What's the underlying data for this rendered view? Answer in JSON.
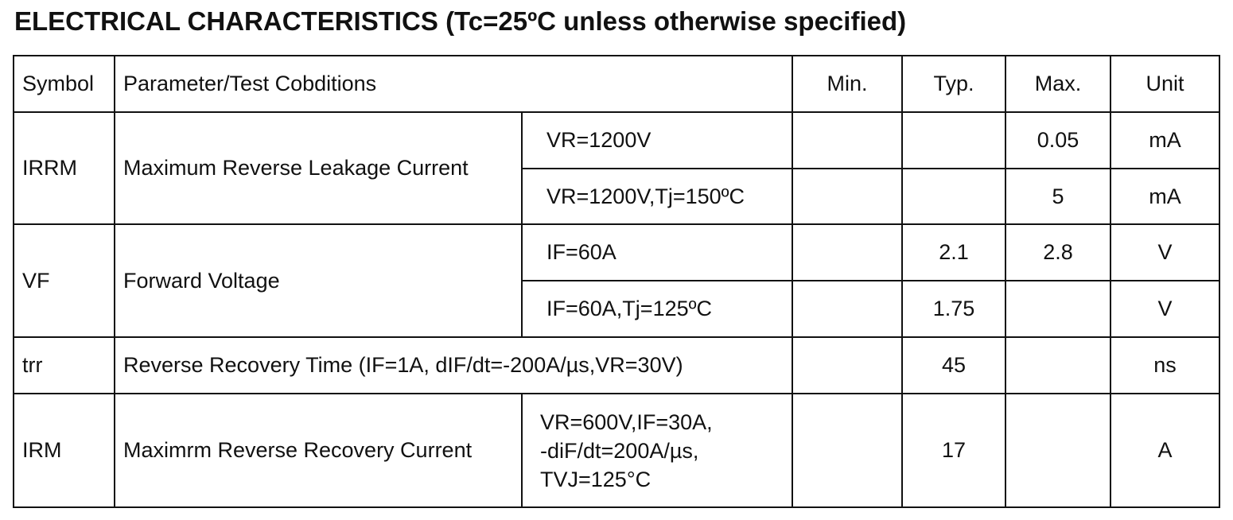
{
  "title": "ELECTRICAL CHARACTERISTICS (Tc=25ºC unless otherwise specified)",
  "table": {
    "header": [
      "Symbol",
      "Parameter/Test Cobditions",
      "Min.",
      "Typ.",
      "Max.",
      "Unit"
    ],
    "rows": [
      {
        "symbol": "IRRM",
        "parameter": "Maximum Reverse Leakage Current",
        "conditions": [
          {
            "condition": "VR=1200V",
            "max": "0.05",
            "unit": "mA"
          },
          {
            "condition": "VR=1200V,Tj=150ºC",
            "max": "5",
            "unit": "mA"
          }
        ]
      },
      {
        "symbol": "VF",
        "parameter": "Forward Voltage",
        "conditions": [
          {
            "condition": "IF=60A",
            "typ": "2.1",
            "max": "2.8",
            "unit": "V"
          },
          {
            "condition": "IF=60A,Tj=125ºC",
            "typ": "1.75",
            "unit": "V"
          }
        ]
      },
      {
        "symbol": "trr",
        "parameter": "Reverse Recovery Time (IF=1A, dIF/dt=-200A/µs,VR=30V)",
        "typ": "45",
        "unit": "ns"
      },
      {
        "symbol": "IRM",
        "parameter": "Maximrm Reverse Recovery Current",
        "condition_lines": [
          "VR=600V,IF=30A,",
          "-diF/dt=200A/µs,",
          "TVJ=125°C"
        ],
        "typ": "17",
        "unit": "A"
      }
    ]
  }
}
